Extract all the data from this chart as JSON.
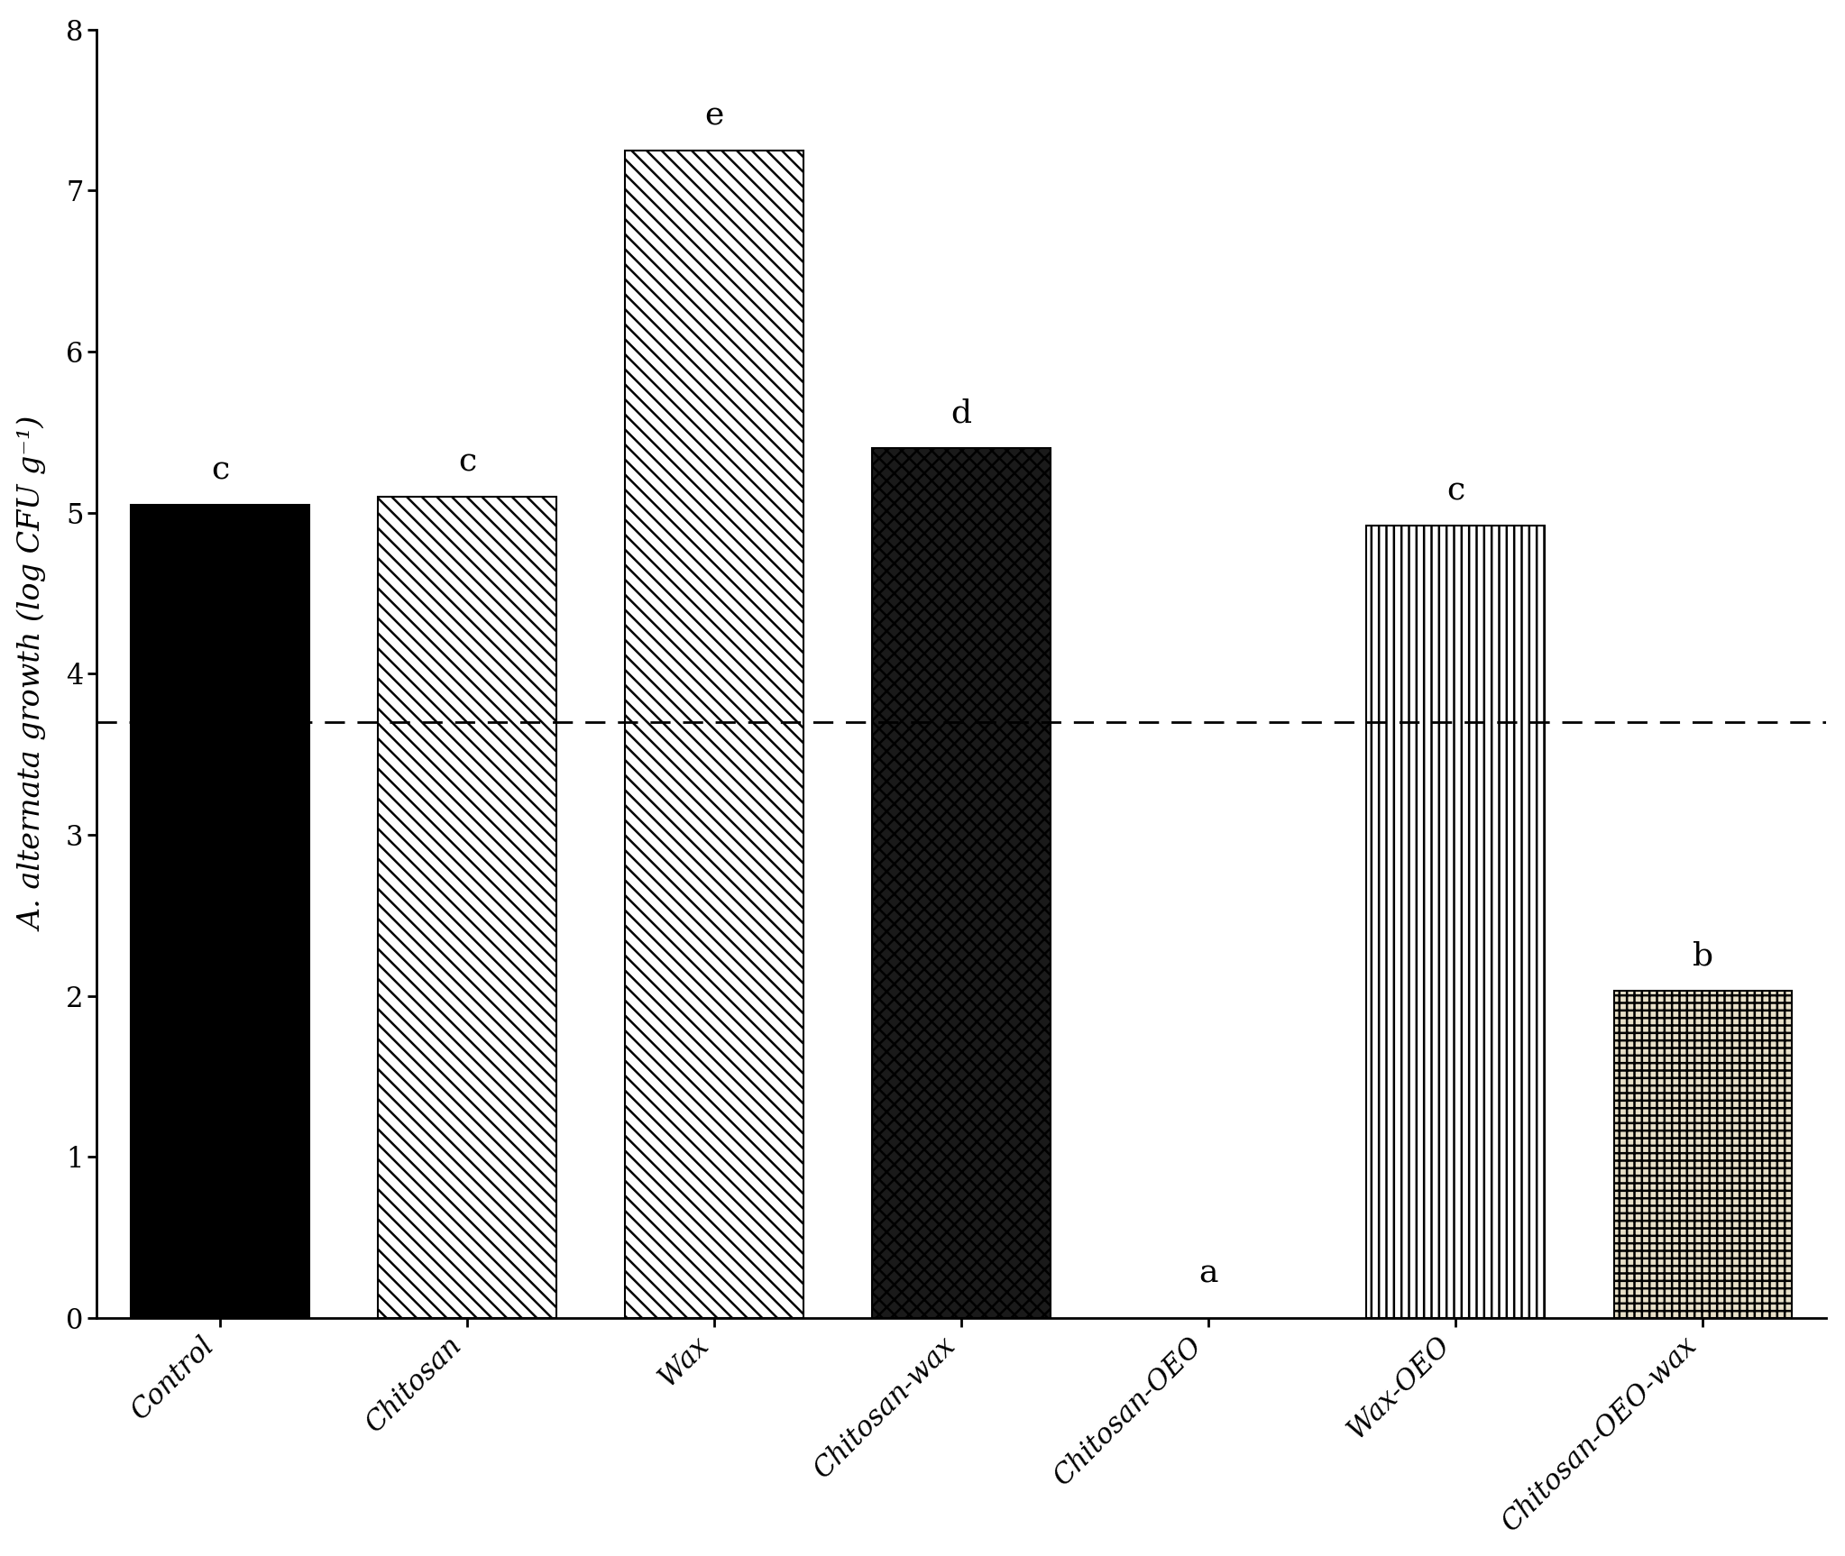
{
  "categories": [
    "Control",
    "Chitosan",
    "Wax",
    "Chitosan-wax",
    "Chitosan-OEO",
    "Wax-OEO",
    "Chitosan-OEO-wax"
  ],
  "values": [
    5.05,
    5.1,
    7.25,
    5.4,
    0.0,
    4.92,
    2.03
  ],
  "letters": [
    "c",
    "c",
    "e",
    "d",
    "a",
    "c",
    "b"
  ],
  "dashed_line_y": 3.7,
  "ylim": [
    0,
    8
  ],
  "yticks": [
    0,
    1,
    2,
    3,
    4,
    5,
    6,
    7,
    8
  ],
  "background_color": "#ffffff",
  "letter_fontsize": 26,
  "tick_fontsize": 22,
  "ylabel_fontsize": 24,
  "bar_width": 0.72
}
